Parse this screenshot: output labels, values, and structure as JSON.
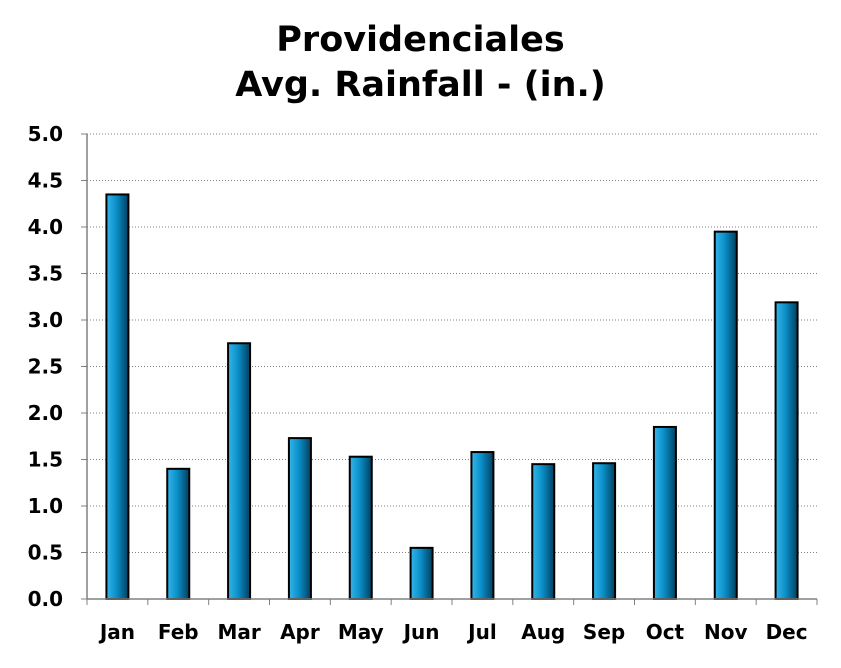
{
  "chart_data": {
    "type": "bar",
    "title": "Providenciales",
    "subtitle": "Avg. Rainfall - (in.)",
    "xlabel": "",
    "ylabel": "",
    "categories": [
      "Jan",
      "Feb",
      "Mar",
      "Apr",
      "May",
      "Jun",
      "Jul",
      "Aug",
      "Sep",
      "Oct",
      "Nov",
      "Dec"
    ],
    "values": [
      4.35,
      1.4,
      2.75,
      1.73,
      1.53,
      0.55,
      1.58,
      1.45,
      1.46,
      1.85,
      3.95,
      3.19
    ],
    "ylim": [
      0,
      5
    ],
    "yticks": [
      "0.0",
      "0.5",
      "1.0",
      "1.5",
      "2.0",
      "2.5",
      "3.0",
      "3.5",
      "4.0",
      "4.5",
      "5.0"
    ],
    "grid": true,
    "legend": "none",
    "colors": {
      "bar_light": "#35b6ea",
      "bar_mid": "#0a8fc8",
      "bar_dark": "#033f5e",
      "bar_outline": "#000000",
      "axis": "#808080",
      "grid": "#7f7f7f"
    }
  }
}
